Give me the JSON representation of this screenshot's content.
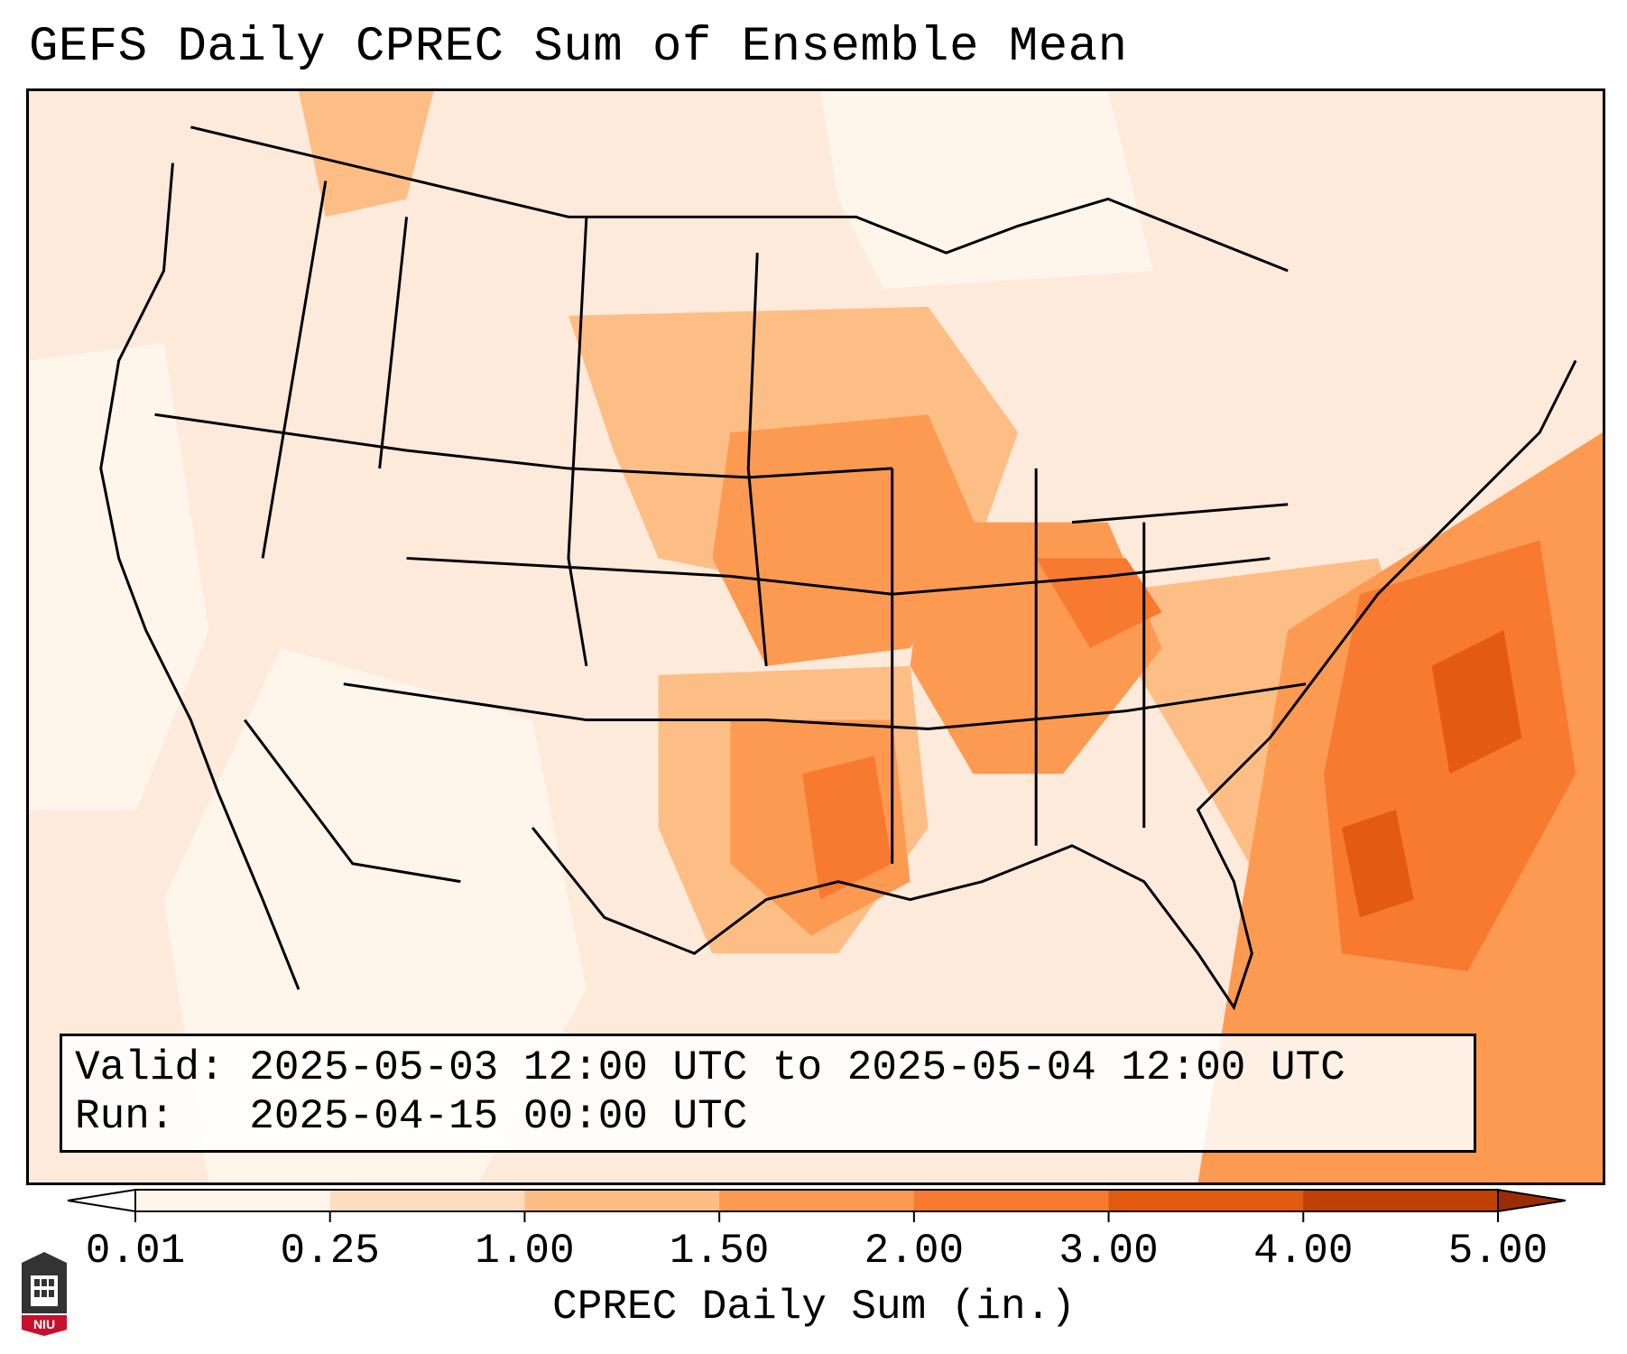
{
  "title": "GEFS Daily CPREC Sum of Ensemble Mean",
  "info": {
    "valid_line": "Valid: 2025-05-03 12:00 UTC to 2025-05-04 12:00 UTC",
    "run_line": "Run:   2025-04-15 00:00 UTC"
  },
  "colorbar": {
    "label": "CPREC Daily Sum (in.)",
    "ticks": [
      "0.01",
      "0.25",
      "1.00",
      "1.50",
      "2.00",
      "3.00",
      "4.00",
      "5.00"
    ],
    "colors": [
      "#fff5eb",
      "#fdddc0",
      "#fdbe85",
      "#fd9a52",
      "#f77a30",
      "#e35a11",
      "#c04004"
    ]
  },
  "logo": {
    "text": "NIU",
    "colors": {
      "red": "#c8102e",
      "dark": "#333333"
    }
  },
  "map": {
    "ocean_color": "#fdeadb",
    "land_base_color": "#fdeadb"
  }
}
